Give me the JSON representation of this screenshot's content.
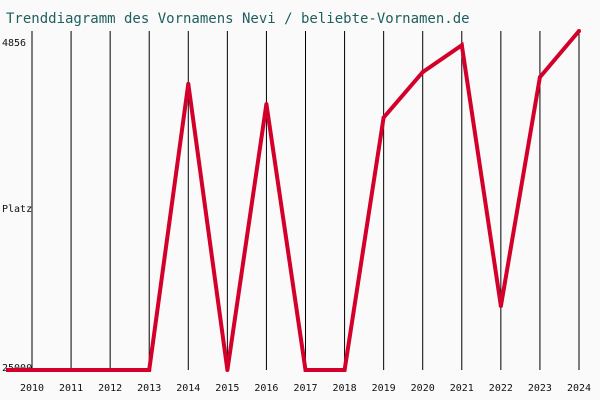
{
  "chart_data": {
    "type": "line",
    "title": "Trenddiagramm des Vornamens Nevi / beliebte-Vornamen.de",
    "xlabel": "",
    "ylabel": "Platz",
    "y_top_label": "4856",
    "y_bottom_label": "25000",
    "ylim": [
      25000,
      4856
    ],
    "grid": "vertical",
    "categories": [
      "2010",
      "2011",
      "2012",
      "2013",
      "2014",
      "2015",
      "2016",
      "2017",
      "2018",
      "2019",
      "2020",
      "2021",
      "2022",
      "2023",
      "2024"
    ],
    "series": [
      {
        "values": [
          25000,
          25000,
          25000,
          25000,
          8000,
          25000,
          9200,
          25000,
          25000,
          10000,
          7300,
          5700,
          21200,
          7600,
          4856
        ]
      }
    ]
  },
  "colors": {
    "line": "#d2002a",
    "grid": "#000000",
    "title": "#1f5f5f",
    "background": "#fafafa"
  }
}
